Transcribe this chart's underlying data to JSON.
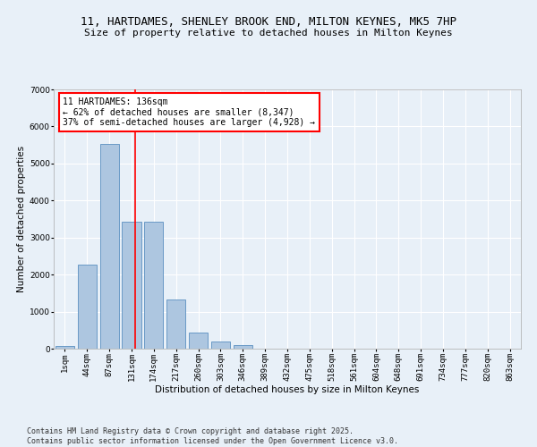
{
  "title_line1": "11, HARTDAMES, SHENLEY BROOK END, MILTON KEYNES, MK5 7HP",
  "title_line2": "Size of property relative to detached houses in Milton Keynes",
  "xlabel": "Distribution of detached houses by size in Milton Keynes",
  "ylabel": "Number of detached properties",
  "categories": [
    "1sqm",
    "44sqm",
    "87sqm",
    "131sqm",
    "174sqm",
    "217sqm",
    "260sqm",
    "303sqm",
    "346sqm",
    "389sqm",
    "432sqm",
    "475sqm",
    "518sqm",
    "561sqm",
    "604sqm",
    "648sqm",
    "691sqm",
    "734sqm",
    "777sqm",
    "820sqm",
    "863sqm"
  ],
  "values": [
    80,
    2280,
    5520,
    3430,
    3430,
    1330,
    430,
    200,
    90,
    10,
    0,
    0,
    0,
    0,
    0,
    0,
    0,
    0,
    0,
    0,
    0
  ],
  "bar_color": "#adc6e0",
  "bar_edge_color": "#5a8fc0",
  "vline_x": 3.15,
  "vline_color": "red",
  "annotation_text": "11 HARTDAMES: 136sqm\n← 62% of detached houses are smaller (8,347)\n37% of semi-detached houses are larger (4,928) →",
  "annotation_box_color": "white",
  "annotation_box_edge_color": "red",
  "ylim": [
    0,
    7000
  ],
  "yticks": [
    0,
    1000,
    2000,
    3000,
    4000,
    5000,
    6000,
    7000
  ],
  "bg_color": "#e8f0f8",
  "plot_bg_color": "#e8f0f8",
  "footer": "Contains HM Land Registry data © Crown copyright and database right 2025.\nContains public sector information licensed under the Open Government Licence v3.0.",
  "title_fontsize": 9,
  "subtitle_fontsize": 8,
  "axis_label_fontsize": 7.5,
  "tick_fontsize": 6.5,
  "annotation_fontsize": 7,
  "footer_fontsize": 6
}
